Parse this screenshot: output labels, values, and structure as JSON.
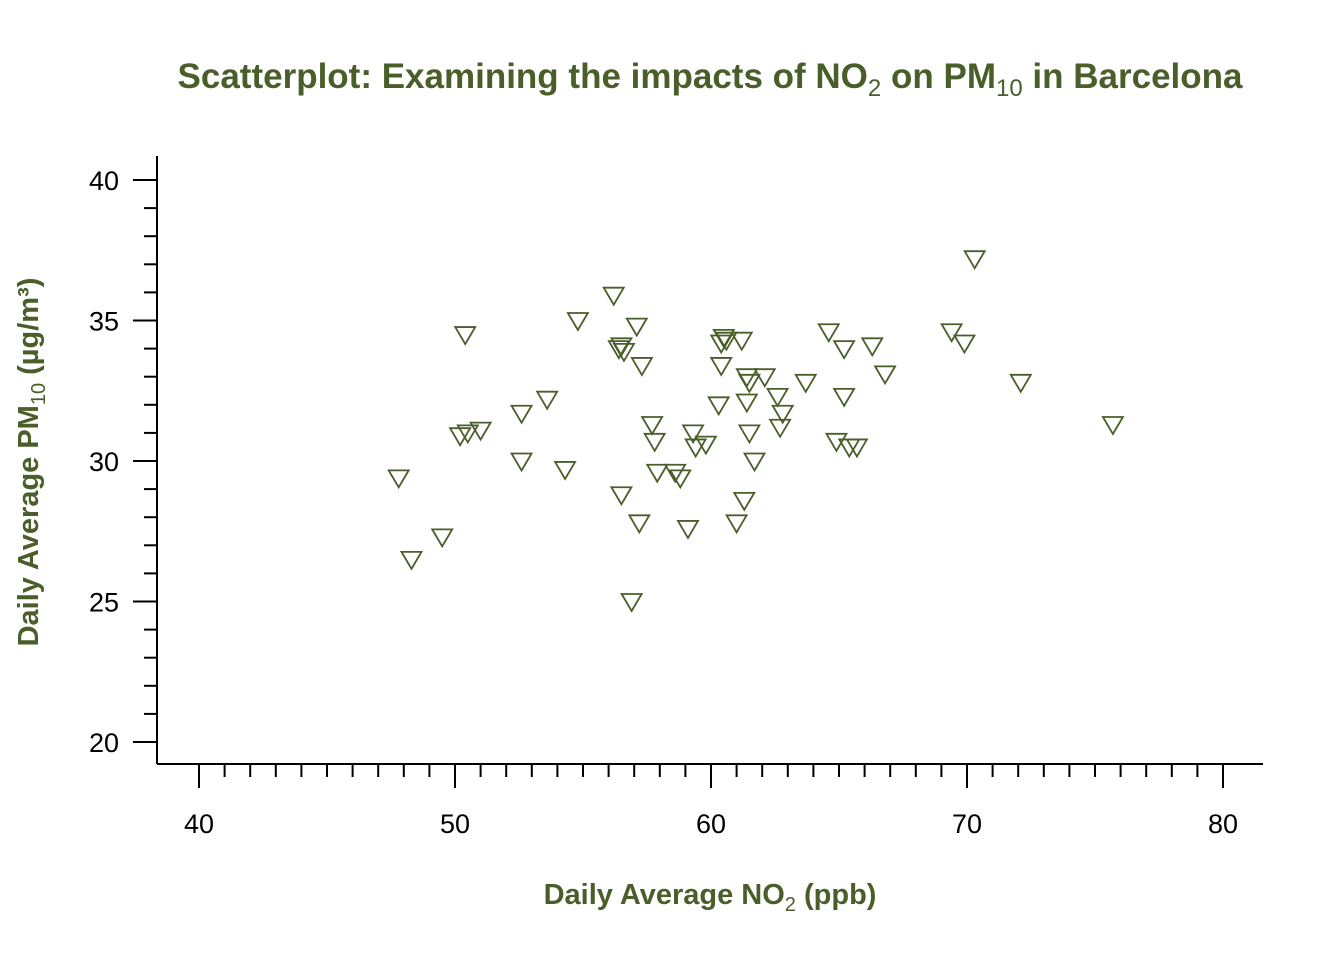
{
  "chart_data": {
    "type": "scatter",
    "title": {
      "prefix": "Scatterplot: Examining the impacts of NO",
      "sub1": "2",
      "middle": " on PM",
      "sub2": "10",
      "suffix": " in Barcelona"
    },
    "xlabel": {
      "prefix": "Daily Average NO",
      "sub": "2",
      "suffix": " (ppb)"
    },
    "ylabel": {
      "prefix": "Daily Average PM",
      "sub": "10",
      "suffix": " (µg/m³)"
    },
    "xlim": [
      40,
      80
    ],
    "ylim": [
      20,
      40
    ],
    "x_ticks": [
      40,
      50,
      60,
      70,
      80
    ],
    "y_ticks": [
      20,
      25,
      30,
      35,
      40
    ],
    "x_minor_step": 1,
    "y_minor_step": 1,
    "marker": "triangle-down",
    "color": "#4a5e2a",
    "points": [
      [
        47.8,
        29.4
      ],
      [
        48.3,
        26.5
      ],
      [
        49.5,
        27.3
      ],
      [
        50.2,
        30.9
      ],
      [
        50.5,
        31.0
      ],
      [
        50.4,
        34.5
      ],
      [
        51.0,
        31.1
      ],
      [
        52.6,
        31.7
      ],
      [
        52.6,
        30.0
      ],
      [
        53.6,
        32.2
      ],
      [
        54.3,
        29.7
      ],
      [
        54.8,
        35.0
      ],
      [
        56.2,
        35.9
      ],
      [
        56.4,
        34.0
      ],
      [
        56.5,
        34.1
      ],
      [
        56.6,
        33.9
      ],
      [
        56.5,
        28.8
      ],
      [
        56.9,
        25.0
      ],
      [
        57.1,
        34.8
      ],
      [
        57.2,
        27.8
      ],
      [
        57.3,
        33.4
      ],
      [
        57.7,
        31.3
      ],
      [
        57.8,
        30.7
      ],
      [
        57.9,
        29.6
      ],
      [
        58.6,
        29.6
      ],
      [
        58.8,
        29.4
      ],
      [
        59.1,
        27.6
      ],
      [
        59.3,
        31.0
      ],
      [
        59.4,
        30.5
      ],
      [
        59.8,
        30.6
      ],
      [
        60.3,
        32.0
      ],
      [
        60.4,
        34.2
      ],
      [
        60.4,
        33.4
      ],
      [
        60.5,
        34.4
      ],
      [
        60.6,
        34.3
      ],
      [
        61.0,
        27.8
      ],
      [
        61.2,
        34.3
      ],
      [
        61.3,
        28.6
      ],
      [
        61.4,
        33.0
      ],
      [
        61.4,
        32.1
      ],
      [
        61.5,
        31.0
      ],
      [
        61.5,
        32.8
      ],
      [
        61.7,
        30.0
      ],
      [
        62.1,
        33.0
      ],
      [
        62.6,
        32.3
      ],
      [
        62.7,
        31.2
      ],
      [
        62.8,
        31.7
      ],
      [
        63.7,
        32.8
      ],
      [
        64.6,
        34.6
      ],
      [
        64.9,
        30.7
      ],
      [
        65.2,
        34.0
      ],
      [
        65.2,
        32.3
      ],
      [
        65.4,
        30.5
      ],
      [
        65.7,
        30.5
      ],
      [
        66.3,
        34.1
      ],
      [
        66.8,
        33.1
      ],
      [
        69.4,
        34.6
      ],
      [
        69.9,
        34.2
      ],
      [
        70.3,
        37.2
      ],
      [
        72.1,
        32.8
      ],
      [
        75.7,
        31.3
      ]
    ]
  }
}
